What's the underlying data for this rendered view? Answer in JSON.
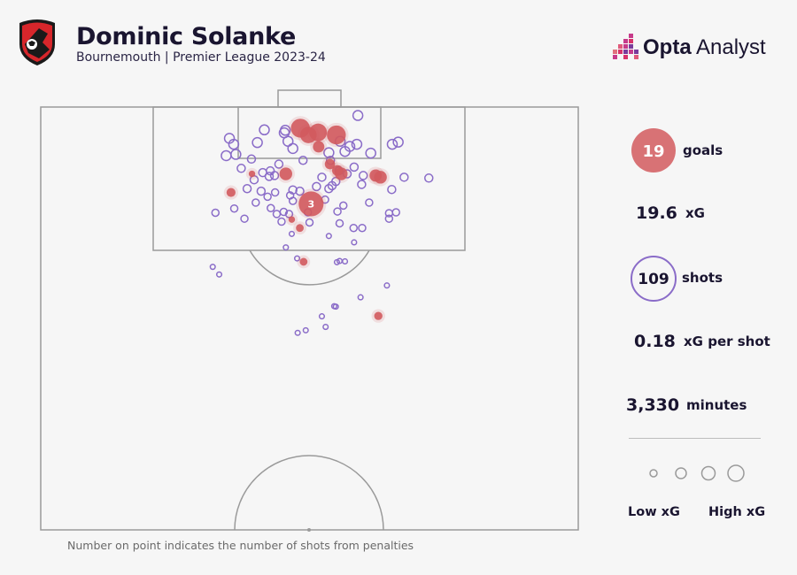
{
  "header": {
    "player": "Dominic Solanke",
    "subtitle": "Bournemouth | Premier League 2023-24",
    "brand_bold": "Opta",
    "brand_rest": " Analyst",
    "crest_text": "AFC BOURNEMOUTH"
  },
  "stats": {
    "goals_value": "19",
    "goals_label": "goals",
    "xg_value": "19.6",
    "xg_label": "xG",
    "shots_value": "109",
    "shots_label": "shots",
    "xg_per_shot_value": "0.18",
    "xg_per_shot_label": "xG per shot",
    "minutes_value": "3,330",
    "minutes_label": "minutes"
  },
  "legend": {
    "low_label": "Low xG",
    "high_label": "High xG"
  },
  "footnote": "Number on point indicates the number of shots from penalties",
  "colors": {
    "goal": "#d25a5e",
    "shot": "#8a6cc8",
    "pitch_line": "#9a9a9a",
    "background": "#f6f6f6"
  },
  "chart_data": {
    "type": "scatter",
    "title": "Dominic Solanke",
    "subtitle": "Bournemouth | Premier League 2023-24",
    "x_axis": "pitch width (0-100)",
    "y_axis": "distance from goal line (0-100 of half pitch)",
    "penalty_label": "3",
    "series": [
      {
        "name": "goals",
        "points": [
          {
            "x": 48.3,
            "y": 5.0,
            "xg": 0.55
          },
          {
            "x": 51.6,
            "y": 6.0,
            "xg": 0.5
          },
          {
            "x": 55.0,
            "y": 6.6,
            "xg": 0.55
          },
          {
            "x": 49.8,
            "y": 6.6,
            "xg": 0.45
          },
          {
            "x": 51.7,
            "y": 9.4,
            "xg": 0.25
          },
          {
            "x": 53.8,
            "y": 13.5,
            "xg": 0.2
          },
          {
            "x": 55.2,
            "y": 15.0,
            "xg": 0.22
          },
          {
            "x": 55.9,
            "y": 15.8,
            "xg": 0.3
          },
          {
            "x": 62.3,
            "y": 16.2,
            "xg": 0.28
          },
          {
            "x": 63.2,
            "y": 16.6,
            "xg": 0.3
          },
          {
            "x": 45.6,
            "y": 15.8,
            "xg": 0.3
          },
          {
            "x": 35.4,
            "y": 20.2,
            "xg": 0.15
          },
          {
            "x": 39.3,
            "y": 15.8,
            "xg": 0.05
          },
          {
            "x": 50.3,
            "y": 22.9,
            "xg": 0.79,
            "penalties": 3
          },
          {
            "x": 46.7,
            "y": 26.6,
            "xg": 0.05
          },
          {
            "x": 48.2,
            "y": 28.6,
            "xg": 0.1
          },
          {
            "x": 48.9,
            "y": 36.6,
            "xg": 0.1
          },
          {
            "x": 62.8,
            "y": 49.4,
            "xg": 0.12
          }
        ]
      },
      {
        "name": "shots",
        "points": [
          {
            "x": 59.0,
            "y": 2.0
          },
          {
            "x": 41.6,
            "y": 5.4
          },
          {
            "x": 45.3,
            "y": 6.1
          },
          {
            "x": 35.1,
            "y": 7.4
          },
          {
            "x": 35.9,
            "y": 8.8
          },
          {
            "x": 46.0,
            "y": 8.1
          },
          {
            "x": 55.7,
            "y": 8.1
          },
          {
            "x": 57.5,
            "y": 9.3
          },
          {
            "x": 58.8,
            "y": 8.8
          },
          {
            "x": 65.4,
            "y": 8.8
          },
          {
            "x": 66.5,
            "y": 8.3
          },
          {
            "x": 46.9,
            "y": 9.8
          },
          {
            "x": 53.6,
            "y": 10.8
          },
          {
            "x": 36.3,
            "y": 11.2
          },
          {
            "x": 34.5,
            "y": 11.5
          },
          {
            "x": 56.6,
            "y": 10.5
          },
          {
            "x": 61.4,
            "y": 10.9
          },
          {
            "x": 44.3,
            "y": 13.5
          },
          {
            "x": 48.8,
            "y": 12.6
          },
          {
            "x": 53.9,
            "y": 12.6
          },
          {
            "x": 37.3,
            "y": 14.5
          },
          {
            "x": 42.7,
            "y": 15.1
          },
          {
            "x": 41.3,
            "y": 15.5
          },
          {
            "x": 55.5,
            "y": 15.1
          },
          {
            "x": 43.5,
            "y": 16.2
          },
          {
            "x": 42.5,
            "y": 16.4
          },
          {
            "x": 52.3,
            "y": 16.6
          },
          {
            "x": 57.0,
            "y": 15.8
          },
          {
            "x": 60.0,
            "y": 16.2
          },
          {
            "x": 67.6,
            "y": 16.6
          },
          {
            "x": 72.2,
            "y": 16.8
          },
          {
            "x": 39.7,
            "y": 17.2
          },
          {
            "x": 54.9,
            "y": 17.6
          },
          {
            "x": 54.2,
            "y": 18.6
          },
          {
            "x": 59.7,
            "y": 18.3
          },
          {
            "x": 65.3,
            "y": 19.5
          },
          {
            "x": 38.4,
            "y": 19.3
          },
          {
            "x": 41.0,
            "y": 19.9
          },
          {
            "x": 46.9,
            "y": 19.6
          },
          {
            "x": 48.2,
            "y": 19.9
          },
          {
            "x": 51.3,
            "y": 18.8
          },
          {
            "x": 53.6,
            "y": 19.3
          },
          {
            "x": 43.6,
            "y": 20.2
          },
          {
            "x": 46.4,
            "y": 20.9
          },
          {
            "x": 42.2,
            "y": 21.2
          },
          {
            "x": 40.0,
            "y": 22.6
          },
          {
            "x": 46.9,
            "y": 22.2
          },
          {
            "x": 52.9,
            "y": 21.9
          },
          {
            "x": 56.3,
            "y": 23.3
          },
          {
            "x": 61.1,
            "y": 22.6
          },
          {
            "x": 36.0,
            "y": 24.0
          },
          {
            "x": 42.8,
            "y": 23.9
          },
          {
            "x": 43.9,
            "y": 25.3
          },
          {
            "x": 45.2,
            "y": 24.8
          },
          {
            "x": 46.2,
            "y": 25.3
          },
          {
            "x": 49.7,
            "y": 24.9
          },
          {
            "x": 55.2,
            "y": 24.7
          },
          {
            "x": 64.8,
            "y": 25.1
          },
          {
            "x": 66.1,
            "y": 24.9
          },
          {
            "x": 32.5,
            "y": 25.0
          },
          {
            "x": 64.8,
            "y": 26.4
          },
          {
            "x": 37.9,
            "y": 26.4
          },
          {
            "x": 44.8,
            "y": 27.1
          },
          {
            "x": 50.0,
            "y": 27.3
          },
          {
            "x": 55.6,
            "y": 27.5
          },
          {
            "x": 58.2,
            "y": 28.6
          },
          {
            "x": 59.8,
            "y": 28.6
          },
          {
            "x": 46.7,
            "y": 30.0
          },
          {
            "x": 53.6,
            "y": 30.5
          },
          {
            "x": 58.3,
            "y": 32.0
          },
          {
            "x": 45.6,
            "y": 33.2
          },
          {
            "x": 47.7,
            "y": 35.8
          },
          {
            "x": 56.6,
            "y": 36.5
          },
          {
            "x": 32.0,
            "y": 37.8
          },
          {
            "x": 33.2,
            "y": 39.6
          },
          {
            "x": 59.5,
            "y": 45.0
          },
          {
            "x": 54.6,
            "y": 47.1
          },
          {
            "x": 52.3,
            "y": 49.5
          },
          {
            "x": 54.9,
            "y": 47.2
          },
          {
            "x": 53.0,
            "y": 52.0
          },
          {
            "x": 47.8,
            "y": 53.4
          },
          {
            "x": 49.3,
            "y": 52.8
          },
          {
            "x": 64.4,
            "y": 42.2
          },
          {
            "x": 55.1,
            "y": 36.7
          },
          {
            "x": 55.6,
            "y": 36.4
          },
          {
            "x": 40.3,
            "y": 8.4
          },
          {
            "x": 39.2,
            "y": 12.3
          },
          {
            "x": 58.3,
            "y": 14.2
          },
          {
            "x": 45.5,
            "y": 5.5
          }
        ]
      }
    ]
  }
}
